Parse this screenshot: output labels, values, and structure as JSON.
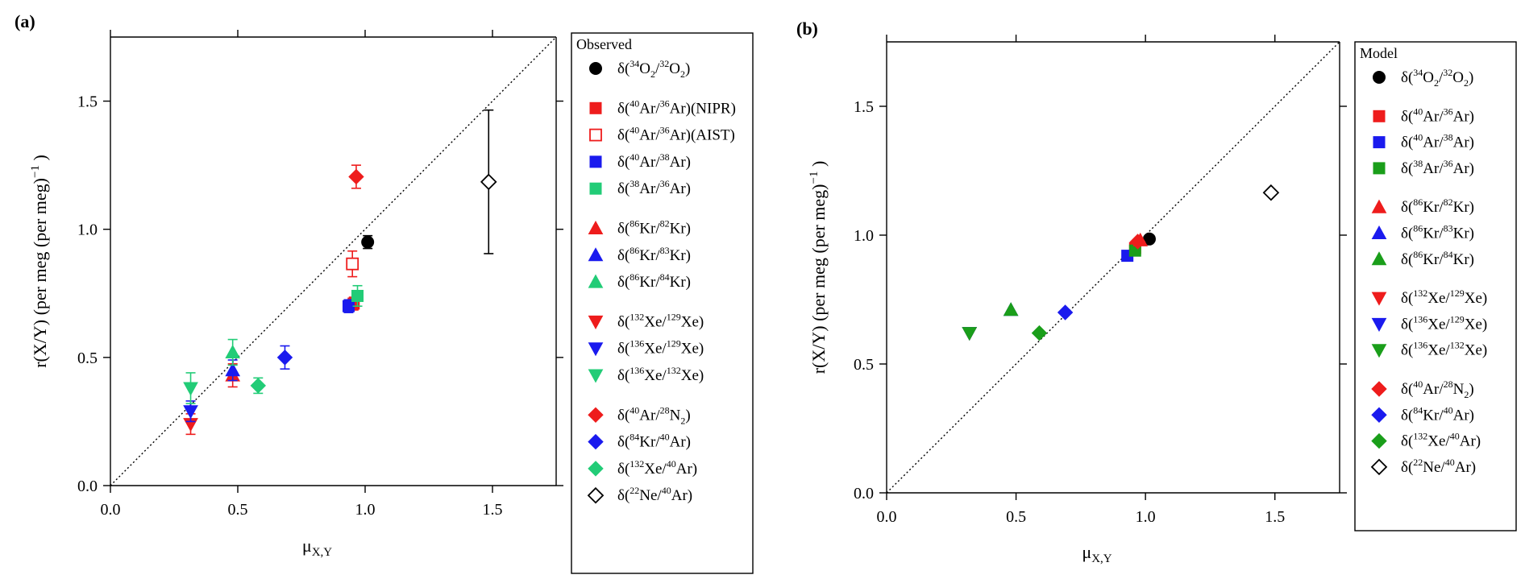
{
  "chart_data": [
    {
      "type": "scatter",
      "panel_label": "(a)",
      "xlabel": "μ",
      "xlabel_sub": "X,Y",
      "ylabel": "r(X/Y) (per meg (per meg)",
      "ylabel_sup": "−1",
      "ylabel_end": ")",
      "xlim": [
        0,
        1.75
      ],
      "ylim": [
        0,
        1.75
      ],
      "xticks": [
        0.0,
        0.5,
        1.0,
        1.5
      ],
      "yticks": [
        0.0,
        0.5,
        1.0,
        1.5
      ],
      "xtick_labels": [
        "0.0",
        "0.5",
        "1.0",
        "1.5"
      ],
      "ytick_labels": [
        "0.0",
        "0.5",
        "1.0",
        "1.5"
      ],
      "diagonal": "1:1 dotted line",
      "grid": false,
      "legend_title": "Observed",
      "legend_placement": "right",
      "series": [
        {
          "name": "δ(34O2/32O2)",
          "label_parts": [
            "δ(",
            "34",
            "O",
            "2",
            "/",
            "32",
            "O",
            "2",
            ")"
          ],
          "marker": "circle",
          "color": "#000000",
          "filled": true,
          "group": 0,
          "points": [
            {
              "x": 1.01,
              "y": 0.95,
              "err": 0.025
            }
          ]
        },
        {
          "name": "δ(40Ar/36Ar)(NIPR)",
          "label_parts": [
            "δ(",
            "40",
            "Ar/",
            "36",
            "Ar)(NIPR)"
          ],
          "marker": "square",
          "color": "#ee1c1c",
          "filled": true,
          "group": 1,
          "points": [
            {
              "x": 0.955,
              "y": 0.71,
              "err": 0.025
            }
          ]
        },
        {
          "name": "δ(40Ar/36Ar)(AIST)",
          "label_parts": [
            "δ(",
            "40",
            "Ar/",
            "36",
            "Ar)(AIST)"
          ],
          "marker": "square",
          "color": "#ee1c1c",
          "filled": false,
          "group": 1,
          "points": [
            {
              "x": 0.95,
              "y": 0.865,
              "err": 0.05
            }
          ]
        },
        {
          "name": "δ(40Ar/38Ar)",
          "label_parts": [
            "δ(",
            "40",
            "Ar/",
            "38",
            "Ar)"
          ],
          "marker": "square",
          "color": "#1a1aee",
          "filled": true,
          "group": 1,
          "points": [
            {
              "x": 0.935,
              "y": 0.7,
              "err": 0.025
            }
          ]
        },
        {
          "name": "δ(38Ar/36Ar)",
          "label_parts": [
            "δ(",
            "38",
            "Ar/",
            "36",
            "Ar)"
          ],
          "marker": "square",
          "color": "#22cc77",
          "filled": true,
          "group": 1,
          "points": [
            {
              "x": 0.97,
              "y": 0.74,
              "err": 0.04
            }
          ]
        },
        {
          "name": "δ(86Kr/82Kr)",
          "label_parts": [
            "δ(",
            "86",
            "Kr/",
            "82",
            "Kr)"
          ],
          "marker": "triangle-up",
          "color": "#ee1c1c",
          "filled": true,
          "group": 2,
          "points": [
            {
              "x": 0.48,
              "y": 0.43,
              "err": 0.045
            }
          ]
        },
        {
          "name": "δ(86Kr/83Kr)",
          "label_parts": [
            "δ(",
            "86",
            "Kr/",
            "83",
            "Kr)"
          ],
          "marker": "triangle-up",
          "color": "#1a1aee",
          "filled": true,
          "group": 2,
          "points": [
            {
              "x": 0.48,
              "y": 0.45,
              "err": 0.04
            }
          ]
        },
        {
          "name": "δ(86Kr/84Kr)",
          "label_parts": [
            "δ(",
            "86",
            "Kr/",
            "84",
            "Kr)"
          ],
          "marker": "triangle-up",
          "color": "#22cc77",
          "filled": true,
          "group": 2,
          "points": [
            {
              "x": 0.48,
              "y": 0.52,
              "err": 0.05
            }
          ]
        },
        {
          "name": "δ(132Xe/129Xe)",
          "label_parts": [
            "δ(",
            "132",
            "Xe/",
            "129",
            "Xe)"
          ],
          "marker": "triangle-down",
          "color": "#ee1c1c",
          "filled": true,
          "group": 3,
          "points": [
            {
              "x": 0.315,
              "y": 0.24,
              "err": 0.04
            }
          ]
        },
        {
          "name": "δ(136Xe/129Xe)",
          "label_parts": [
            "δ(",
            "136",
            "Xe/",
            "129",
            "Xe)"
          ],
          "marker": "triangle-down",
          "color": "#1a1aee",
          "filled": true,
          "group": 3,
          "points": [
            {
              "x": 0.315,
              "y": 0.29,
              "err": 0.04
            }
          ]
        },
        {
          "name": "δ(136Xe/132Xe)",
          "label_parts": [
            "δ(",
            "136",
            "Xe/",
            "132",
            "Xe)"
          ],
          "marker": "triangle-down",
          "color": "#22cc77",
          "filled": true,
          "group": 3,
          "points": [
            {
              "x": 0.315,
              "y": 0.38,
              "err": 0.06
            }
          ]
        },
        {
          "name": "δ(40Ar/28N2)",
          "label_parts": [
            "δ(",
            "40",
            "Ar/",
            "28",
            "N",
            "2",
            ")"
          ],
          "marker": "diamond",
          "color": "#ee1c1c",
          "filled": true,
          "group": 4,
          "points": [
            {
              "x": 0.965,
              "y": 1.205,
              "err": 0.045
            }
          ]
        },
        {
          "name": "δ(84Kr/40Ar)",
          "label_parts": [
            "δ(",
            "84",
            "Kr/",
            "40",
            "Ar)"
          ],
          "marker": "diamond",
          "color": "#1a1aee",
          "filled": true,
          "group": 4,
          "points": [
            {
              "x": 0.685,
              "y": 0.5,
              "err": 0.045
            }
          ]
        },
        {
          "name": "δ(132Xe/40Ar)",
          "label_parts": [
            "δ(",
            "132",
            "Xe/",
            "40",
            "Ar)"
          ],
          "marker": "diamond",
          "color": "#22cc77",
          "filled": true,
          "group": 4,
          "points": [
            {
              "x": 0.58,
              "y": 0.39,
              "err": 0.03
            }
          ]
        },
        {
          "name": "δ(22Ne/40Ar)",
          "label_parts": [
            "δ(",
            "22",
            "Ne/",
            "40",
            "Ar)"
          ],
          "marker": "diamond",
          "color": "#000000",
          "filled": false,
          "group": 4,
          "points": [
            {
              "x": 1.485,
              "y": 1.185,
              "err": 0.28
            }
          ]
        }
      ]
    },
    {
      "type": "scatter",
      "panel_label": "(b)",
      "xlabel": "μ",
      "xlabel_sub": "X,Y",
      "ylabel": "r(X/Y) (per meg (per meg)",
      "ylabel_sup": "−1",
      "ylabel_end": ")",
      "xlim": [
        0,
        1.75
      ],
      "ylim": [
        0,
        1.75
      ],
      "xticks": [
        0.0,
        0.5,
        1.0,
        1.5
      ],
      "yticks": [
        0.0,
        0.5,
        1.0,
        1.5
      ],
      "xtick_labels": [
        "0.0",
        "0.5",
        "1.0",
        "1.5"
      ],
      "ytick_labels": [
        "0.0",
        "0.5",
        "1.0",
        "1.5"
      ],
      "diagonal": "1:1 dotted line",
      "grid": false,
      "legend_title": "Model",
      "legend_placement": "right",
      "series": [
        {
          "name": "δ(34O2/32O2)",
          "label_parts": [
            "δ(",
            "34",
            "O",
            "2",
            "/",
            "32",
            "O",
            "2",
            ")"
          ],
          "marker": "circle",
          "color": "#000000",
          "filled": true,
          "group": 0,
          "points": [
            {
              "x": 1.015,
              "y": 0.985
            }
          ]
        },
        {
          "name": "δ(40Ar/36Ar)",
          "label_parts": [
            "δ(",
            "40",
            "Ar/",
            "36",
            "Ar)"
          ],
          "marker": "square",
          "color": "#ee1c1c",
          "filled": true,
          "group": 1,
          "points": [
            {
              "x": 0.96,
              "y": 0.95
            }
          ]
        },
        {
          "name": "δ(40Ar/38Ar)",
          "label_parts": [
            "δ(",
            "40",
            "Ar/",
            "38",
            "Ar)"
          ],
          "marker": "square",
          "color": "#1a1aee",
          "filled": true,
          "group": 1,
          "points": [
            {
              "x": 0.93,
              "y": 0.92
            }
          ]
        },
        {
          "name": "δ(38Ar/36Ar)",
          "label_parts": [
            "δ(",
            "38",
            "Ar/",
            "36",
            "Ar)"
          ],
          "marker": "square",
          "color": "#1a9e1a",
          "filled": true,
          "group": 1,
          "points": [
            {
              "x": 0.96,
              "y": 0.94
            }
          ]
        },
        {
          "name": "δ(86Kr/82Kr)",
          "label_parts": [
            "δ(",
            "86",
            "Kr/",
            "82",
            "Kr)"
          ],
          "marker": "triangle-up",
          "color": "#ee1c1c",
          "filled": true,
          "group": 2,
          "points": [
            {
              "x": 0.98,
              "y": 0.98
            }
          ]
        },
        {
          "name": "δ(86Kr/83Kr)",
          "label_parts": [
            "δ(",
            "86",
            "Kr/",
            "83",
            "Kr)"
          ],
          "marker": "triangle-up",
          "color": "#1a1aee",
          "filled": true,
          "group": 2,
          "points": [
            {
              "x": 0.48,
              "y": 0.71
            }
          ]
        },
        {
          "name": "δ(86Kr/84Kr)",
          "label_parts": [
            "δ(",
            "86",
            "Kr/",
            "84",
            "Kr)"
          ],
          "marker": "triangle-up",
          "color": "#1a9e1a",
          "filled": true,
          "group": 2,
          "points": [
            {
              "x": 0.48,
              "y": 0.71
            }
          ]
        },
        {
          "name": "δ(132Xe/129Xe)",
          "label_parts": [
            "δ(",
            "132",
            "Xe/",
            "129",
            "Xe)"
          ],
          "marker": "triangle-down",
          "color": "#ee1c1c",
          "filled": true,
          "group": 3,
          "points": [
            {
              "x": 0.32,
              "y": 0.62
            }
          ]
        },
        {
          "name": "δ(136Xe/129Xe)",
          "label_parts": [
            "δ(",
            "136",
            "Xe/",
            "129",
            "Xe)"
          ],
          "marker": "triangle-down",
          "color": "#1a1aee",
          "filled": true,
          "group": 3,
          "points": [
            {
              "x": 0.32,
              "y": 0.62
            }
          ]
        },
        {
          "name": "δ(136Xe/132Xe)",
          "label_parts": [
            "δ(",
            "136",
            "Xe/",
            "132",
            "Xe)"
          ],
          "marker": "triangle-down",
          "color": "#1a9e1a",
          "filled": true,
          "group": 3,
          "points": [
            {
              "x": 0.32,
              "y": 0.62
            }
          ]
        },
        {
          "name": "δ(40Ar/28N2)",
          "label_parts": [
            "δ(",
            "40",
            "Ar/",
            "28",
            "N",
            "2",
            ")"
          ],
          "marker": "diamond",
          "color": "#ee1c1c",
          "filled": true,
          "group": 4,
          "points": [
            {
              "x": 0.97,
              "y": 0.975
            }
          ]
        },
        {
          "name": "δ(84Kr/40Ar)",
          "label_parts": [
            "δ(",
            "84",
            "Kr/",
            "40",
            "Ar)"
          ],
          "marker": "diamond",
          "color": "#1a1aee",
          "filled": true,
          "group": 4,
          "points": [
            {
              "x": 0.69,
              "y": 0.7
            }
          ]
        },
        {
          "name": "δ(132Xe/40Ar)",
          "label_parts": [
            "δ(",
            "132",
            "Xe/",
            "40",
            "Ar)"
          ],
          "marker": "diamond",
          "color": "#1a9e1a",
          "filled": true,
          "group": 4,
          "points": [
            {
              "x": 0.59,
              "y": 0.62
            }
          ]
        },
        {
          "name": "δ(22Ne/40Ar)",
          "label_parts": [
            "δ(",
            "22",
            "Ne/",
            "40",
            "Ar)"
          ],
          "marker": "diamond",
          "color": "#000000",
          "filled": false,
          "group": 4,
          "points": [
            {
              "x": 1.485,
              "y": 1.165
            }
          ]
        }
      ]
    }
  ]
}
